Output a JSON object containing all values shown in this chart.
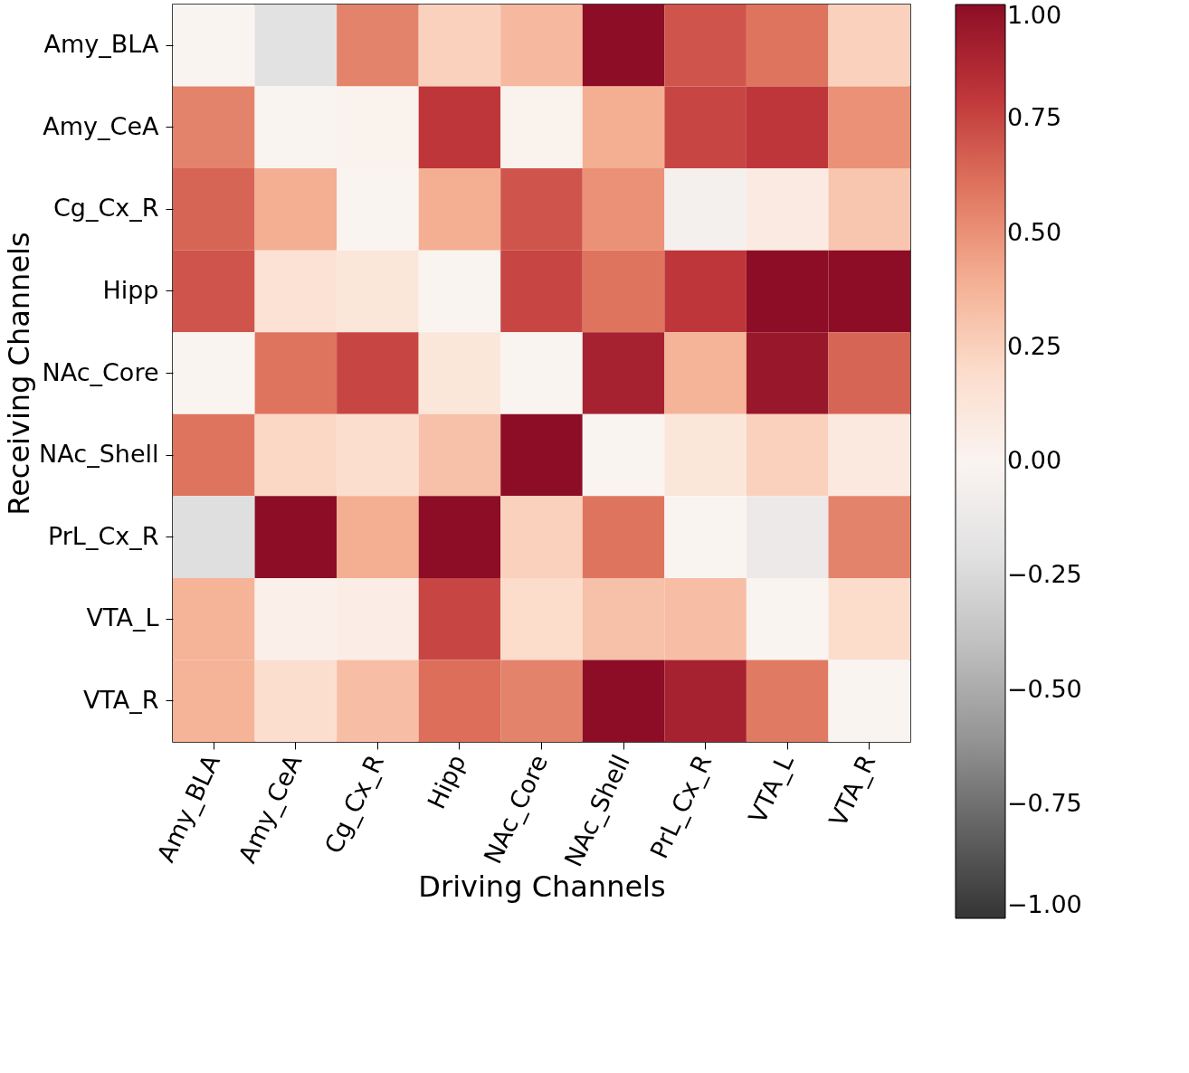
{
  "chart_data": {
    "type": "heatmap",
    "xlabel": "Driving Channels",
    "ylabel": "Receiving Channels",
    "categories": [
      "Amy_BLA",
      "Amy_CeA",
      "Cg_Cx_R",
      "Hipp",
      "NAc_Core",
      "NAc_Shell",
      "PrL_Cx_R",
      "VTA_L",
      "VTA_R"
    ],
    "y_categories": [
      "Amy_BLA",
      "Amy_CeA",
      "Cg_Cx_R",
      "Hipp",
      "NAc_Core",
      "NAc_Shell",
      "PrL_Cx_R",
      "VTA_L",
      "VTA_R"
    ],
    "cells": [
      [
        0.0,
        -0.2,
        0.55,
        0.25,
        0.35,
        1.0,
        0.7,
        0.6,
        0.25
      ],
      [
        0.55,
        0.0,
        0.02,
        0.8,
        0.02,
        0.4,
        0.75,
        0.8,
        0.5
      ],
      [
        0.65,
        0.4,
        0.0,
        0.4,
        0.7,
        0.5,
        -0.05,
        0.08,
        0.3
      ],
      [
        0.7,
        0.15,
        0.12,
        0.0,
        0.75,
        0.6,
        0.8,
        1.0,
        1.0
      ],
      [
        0.0,
        0.6,
        0.75,
        0.12,
        0.0,
        0.9,
        0.38,
        0.95,
        0.65
      ],
      [
        0.6,
        0.22,
        0.18,
        0.32,
        1.0,
        0.0,
        0.12,
        0.25,
        0.1
      ],
      [
        -0.22,
        1.0,
        0.4,
        1.0,
        0.25,
        0.6,
        0.0,
        -0.12,
        0.55
      ],
      [
        0.38,
        0.04,
        0.06,
        0.75,
        0.2,
        0.32,
        0.33,
        0.0,
        0.2
      ],
      [
        0.38,
        0.18,
        0.33,
        0.62,
        0.55,
        1.0,
        0.9,
        0.58,
        0.0
      ]
    ],
    "clim": [
      -1,
      1
    ],
    "cticks": [
      {
        "value": -1,
        "label": "−1.00"
      },
      {
        "value": -0.75,
        "label": "−0.75"
      },
      {
        "value": -0.5,
        "label": "−0.50"
      },
      {
        "value": -0.25,
        "label": "−0.25"
      },
      {
        "value": 0,
        "label": "0.00"
      },
      {
        "value": 0.25,
        "label": "0.25"
      },
      {
        "value": 0.5,
        "label": "0.50"
      },
      {
        "value": 0.75,
        "label": "0.75"
      },
      {
        "value": 1,
        "label": "1.00"
      }
    ]
  }
}
